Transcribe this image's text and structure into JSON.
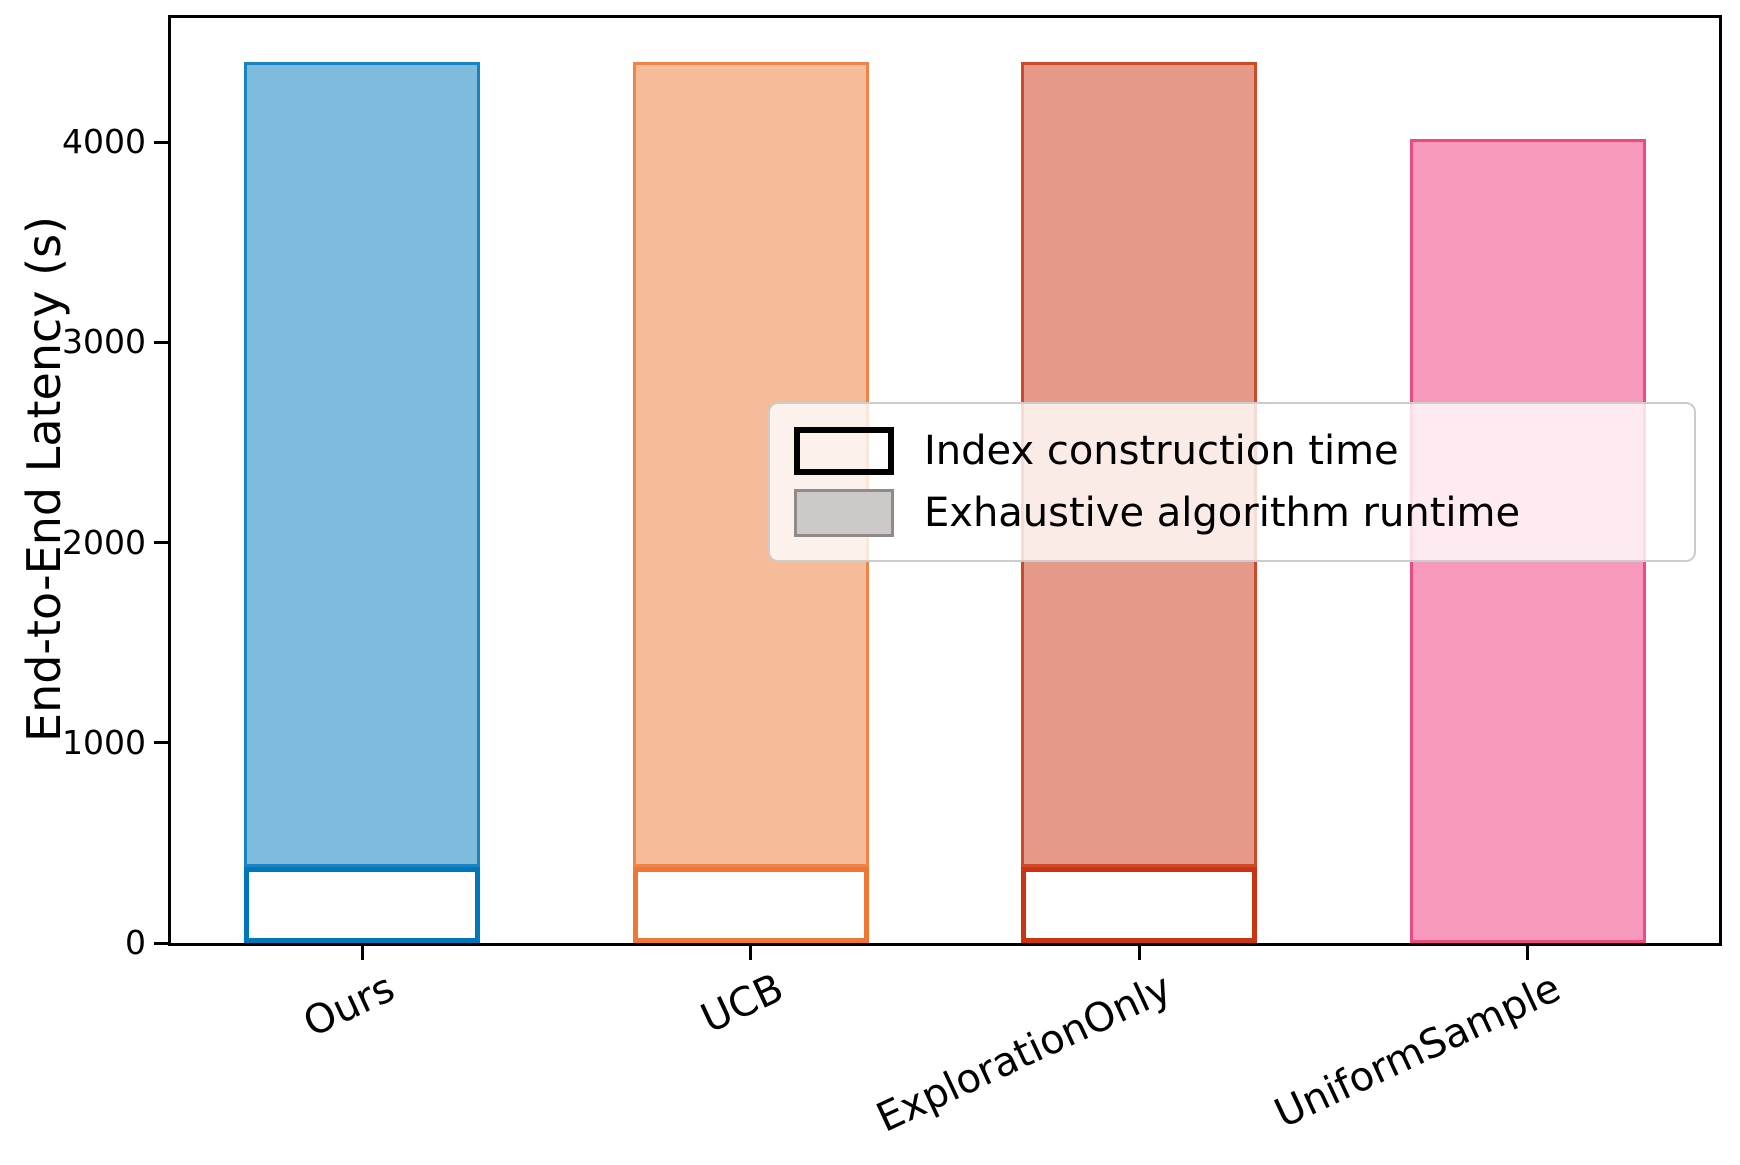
{
  "chart_data": {
    "type": "bar",
    "title": "",
    "xlabel": "",
    "ylabel": "End-to-End Latency (s)",
    "categories": [
      "Ours",
      "UCB",
      "ExplorationOnly",
      "UniformSample"
    ],
    "series": [
      {
        "name": "Index construction time",
        "values": [
          380,
          380,
          380,
          0
        ]
      },
      {
        "name": "Exhaustive algorithm runtime",
        "values": [
          4020,
          4020,
          4020,
          4015
        ]
      }
    ],
    "totals": [
      4400,
      4400,
      4400,
      4015
    ],
    "yticks": [
      "0",
      "1000",
      "2000",
      "3000",
      "4000"
    ],
    "ytick_values": [
      0,
      1000,
      2000,
      3000,
      4000
    ],
    "ylim": [
      0,
      4630
    ],
    "grid": false,
    "legend_position": "center right",
    "x_tick_rotation_deg": 25,
    "bar_edge_colors": [
      "#0077bb",
      "#ee7733",
      "#cc3311",
      "#ee3377"
    ],
    "bar_fill_alpha": 0.5
  },
  "legend": {
    "items": [
      {
        "label": "Index construction time",
        "swatch": "outline-black"
      },
      {
        "label": "Exhaustive algorithm runtime",
        "swatch": "gray-fill"
      }
    ]
  },
  "axes": {
    "ylabel": "End-to-End Latency (s)"
  }
}
